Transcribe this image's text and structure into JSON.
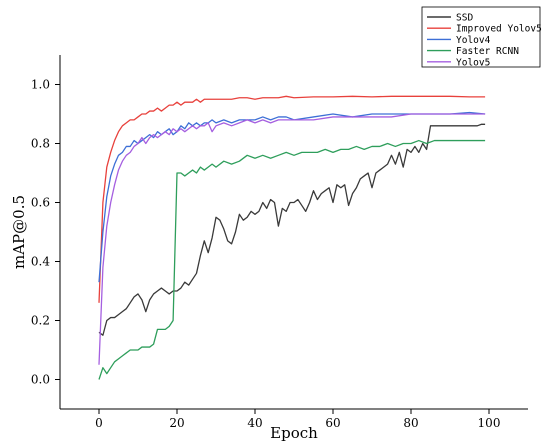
{
  "chart_data": {
    "type": "line",
    "xlabel": "Epoch",
    "ylabel": "mAP@0.5",
    "xlim": [
      -10,
      110
    ],
    "ylim": [
      -0.1,
      1.1
    ],
    "x_ticks": [
      0,
      20,
      40,
      60,
      80,
      100
    ],
    "y_ticks": [
      0.0,
      0.2,
      0.4,
      0.6,
      0.8,
      1.0
    ],
    "x_tick_labels": [
      "0",
      "20",
      "40",
      "60",
      "80",
      "100"
    ],
    "y_tick_labels": [
      "0.0",
      "0.2",
      "0.4",
      "0.6",
      "0.8",
      "1.0"
    ],
    "grid": false,
    "legend_position": "top-right",
    "series": [
      {
        "name": "SSD",
        "color": "#3a3a3a",
        "x": [
          0,
          1,
          2,
          3,
          4,
          5,
          6,
          7,
          8,
          9,
          10,
          11,
          12,
          13,
          14,
          15,
          16,
          17,
          18,
          19,
          20,
          21,
          22,
          23,
          24,
          25,
          26,
          27,
          28,
          29,
          30,
          31,
          32,
          33,
          34,
          35,
          36,
          37,
          38,
          39,
          40,
          41,
          42,
          43,
          44,
          45,
          46,
          47,
          48,
          49,
          50,
          51,
          52,
          53,
          54,
          55,
          56,
          57,
          58,
          59,
          60,
          61,
          62,
          63,
          64,
          65,
          66,
          67,
          68,
          69,
          70,
          71,
          72,
          73,
          74,
          75,
          76,
          77,
          78,
          79,
          80,
          81,
          82,
          83,
          84,
          85,
          86,
          87,
          88,
          89,
          90,
          91,
          92,
          93,
          94,
          95,
          96,
          97,
          98,
          99
        ],
        "y": [
          0.16,
          0.15,
          0.2,
          0.21,
          0.21,
          0.22,
          0.23,
          0.24,
          0.26,
          0.28,
          0.29,
          0.27,
          0.23,
          0.27,
          0.29,
          0.3,
          0.31,
          0.3,
          0.29,
          0.3,
          0.3,
          0.31,
          0.33,
          0.32,
          0.34,
          0.36,
          0.42,
          0.47,
          0.43,
          0.48,
          0.55,
          0.54,
          0.51,
          0.47,
          0.46,
          0.5,
          0.56,
          0.54,
          0.55,
          0.57,
          0.56,
          0.57,
          0.6,
          0.58,
          0.61,
          0.6,
          0.52,
          0.58,
          0.57,
          0.6,
          0.6,
          0.61,
          0.59,
          0.57,
          0.6,
          0.64,
          0.61,
          0.63,
          0.64,
          0.65,
          0.6,
          0.66,
          0.65,
          0.66,
          0.59,
          0.63,
          0.65,
          0.68,
          0.69,
          0.7,
          0.65,
          0.7,
          0.71,
          0.72,
          0.73,
          0.76,
          0.73,
          0.77,
          0.72,
          0.78,
          0.77,
          0.79,
          0.77,
          0.8,
          0.78,
          0.86,
          0.86,
          0.86,
          0.86,
          0.86,
          0.86,
          0.86,
          0.86,
          0.86,
          0.86,
          0.86,
          0.86,
          0.86,
          0.865,
          0.865
        ]
      },
      {
        "name": "Improved Yolov5",
        "color": "#e8413c",
        "x": [
          0,
          1,
          2,
          3,
          4,
          5,
          6,
          7,
          8,
          9,
          10,
          11,
          12,
          13,
          14,
          15,
          16,
          17,
          18,
          19,
          20,
          21,
          22,
          23,
          24,
          25,
          26,
          27,
          28,
          29,
          30,
          32,
          34,
          36,
          38,
          40,
          42,
          44,
          46,
          48,
          50,
          55,
          60,
          65,
          70,
          75,
          80,
          85,
          90,
          95,
          99
        ],
        "y": [
          0.26,
          0.6,
          0.72,
          0.77,
          0.81,
          0.84,
          0.86,
          0.87,
          0.88,
          0.88,
          0.89,
          0.9,
          0.9,
          0.91,
          0.91,
          0.92,
          0.91,
          0.92,
          0.93,
          0.93,
          0.94,
          0.93,
          0.94,
          0.94,
          0.94,
          0.95,
          0.94,
          0.95,
          0.95,
          0.95,
          0.95,
          0.95,
          0.95,
          0.955,
          0.955,
          0.95,
          0.955,
          0.955,
          0.955,
          0.96,
          0.955,
          0.958,
          0.958,
          0.96,
          0.958,
          0.96,
          0.96,
          0.96,
          0.96,
          0.958,
          0.958
        ]
      },
      {
        "name": "Yolov4",
        "color": "#3d6fd6",
        "x": [
          0,
          1,
          2,
          3,
          4,
          5,
          6,
          7,
          8,
          9,
          10,
          11,
          12,
          13,
          14,
          15,
          16,
          17,
          18,
          19,
          20,
          21,
          22,
          23,
          24,
          25,
          26,
          27,
          28,
          29,
          30,
          32,
          34,
          36,
          38,
          40,
          42,
          44,
          46,
          48,
          50,
          55,
          60,
          65,
          70,
          75,
          80,
          85,
          90,
          95,
          99
        ],
        "y": [
          0.33,
          0.5,
          0.62,
          0.69,
          0.73,
          0.76,
          0.77,
          0.79,
          0.79,
          0.81,
          0.8,
          0.81,
          0.82,
          0.83,
          0.82,
          0.84,
          0.83,
          0.84,
          0.85,
          0.83,
          0.84,
          0.86,
          0.85,
          0.87,
          0.86,
          0.87,
          0.86,
          0.87,
          0.87,
          0.88,
          0.87,
          0.88,
          0.87,
          0.88,
          0.88,
          0.88,
          0.89,
          0.88,
          0.89,
          0.89,
          0.88,
          0.89,
          0.9,
          0.89,
          0.9,
          0.9,
          0.9,
          0.9,
          0.9,
          0.905,
          0.9
        ]
      },
      {
        "name": "Faster RCNN",
        "color": "#2e9e5b",
        "x": [
          0,
          1,
          2,
          3,
          4,
          5,
          6,
          7,
          8,
          9,
          10,
          11,
          12,
          13,
          14,
          15,
          16,
          17,
          18,
          19,
          20,
          21,
          22,
          23,
          24,
          25,
          26,
          27,
          28,
          29,
          30,
          32,
          34,
          36,
          38,
          40,
          42,
          44,
          46,
          48,
          50,
          52,
          54,
          56,
          58,
          60,
          62,
          64,
          66,
          68,
          70,
          72,
          74,
          76,
          78,
          80,
          82,
          84,
          86,
          88,
          90,
          92,
          94,
          96,
          98,
          99
        ],
        "y": [
          0.0,
          0.04,
          0.02,
          0.04,
          0.06,
          0.07,
          0.08,
          0.09,
          0.1,
          0.1,
          0.1,
          0.11,
          0.11,
          0.11,
          0.12,
          0.17,
          0.17,
          0.17,
          0.18,
          0.2,
          0.7,
          0.7,
          0.69,
          0.7,
          0.71,
          0.7,
          0.72,
          0.71,
          0.72,
          0.73,
          0.72,
          0.74,
          0.73,
          0.74,
          0.76,
          0.75,
          0.76,
          0.75,
          0.76,
          0.77,
          0.76,
          0.77,
          0.77,
          0.77,
          0.78,
          0.77,
          0.78,
          0.78,
          0.79,
          0.78,
          0.79,
          0.79,
          0.8,
          0.79,
          0.8,
          0.8,
          0.81,
          0.8,
          0.81,
          0.81,
          0.81,
          0.81,
          0.81,
          0.81,
          0.81,
          0.81
        ]
      },
      {
        "name": "Yolov5",
        "color": "#a55fe0",
        "x": [
          0,
          1,
          2,
          3,
          4,
          5,
          6,
          7,
          8,
          9,
          10,
          11,
          12,
          13,
          14,
          15,
          16,
          17,
          18,
          19,
          20,
          21,
          22,
          23,
          24,
          25,
          26,
          27,
          28,
          29,
          30,
          32,
          34,
          36,
          38,
          40,
          42,
          44,
          46,
          48,
          50,
          55,
          60,
          65,
          70,
          75,
          80,
          85,
          90,
          95,
          99
        ],
        "y": [
          0.05,
          0.38,
          0.52,
          0.6,
          0.66,
          0.71,
          0.74,
          0.76,
          0.77,
          0.79,
          0.8,
          0.82,
          0.8,
          0.82,
          0.83,
          0.82,
          0.83,
          0.84,
          0.83,
          0.85,
          0.84,
          0.85,
          0.84,
          0.85,
          0.86,
          0.85,
          0.86,
          0.86,
          0.87,
          0.84,
          0.86,
          0.87,
          0.86,
          0.87,
          0.88,
          0.87,
          0.88,
          0.87,
          0.88,
          0.88,
          0.88,
          0.88,
          0.89,
          0.89,
          0.89,
          0.89,
          0.9,
          0.9,
          0.9,
          0.9,
          0.9
        ]
      }
    ]
  }
}
